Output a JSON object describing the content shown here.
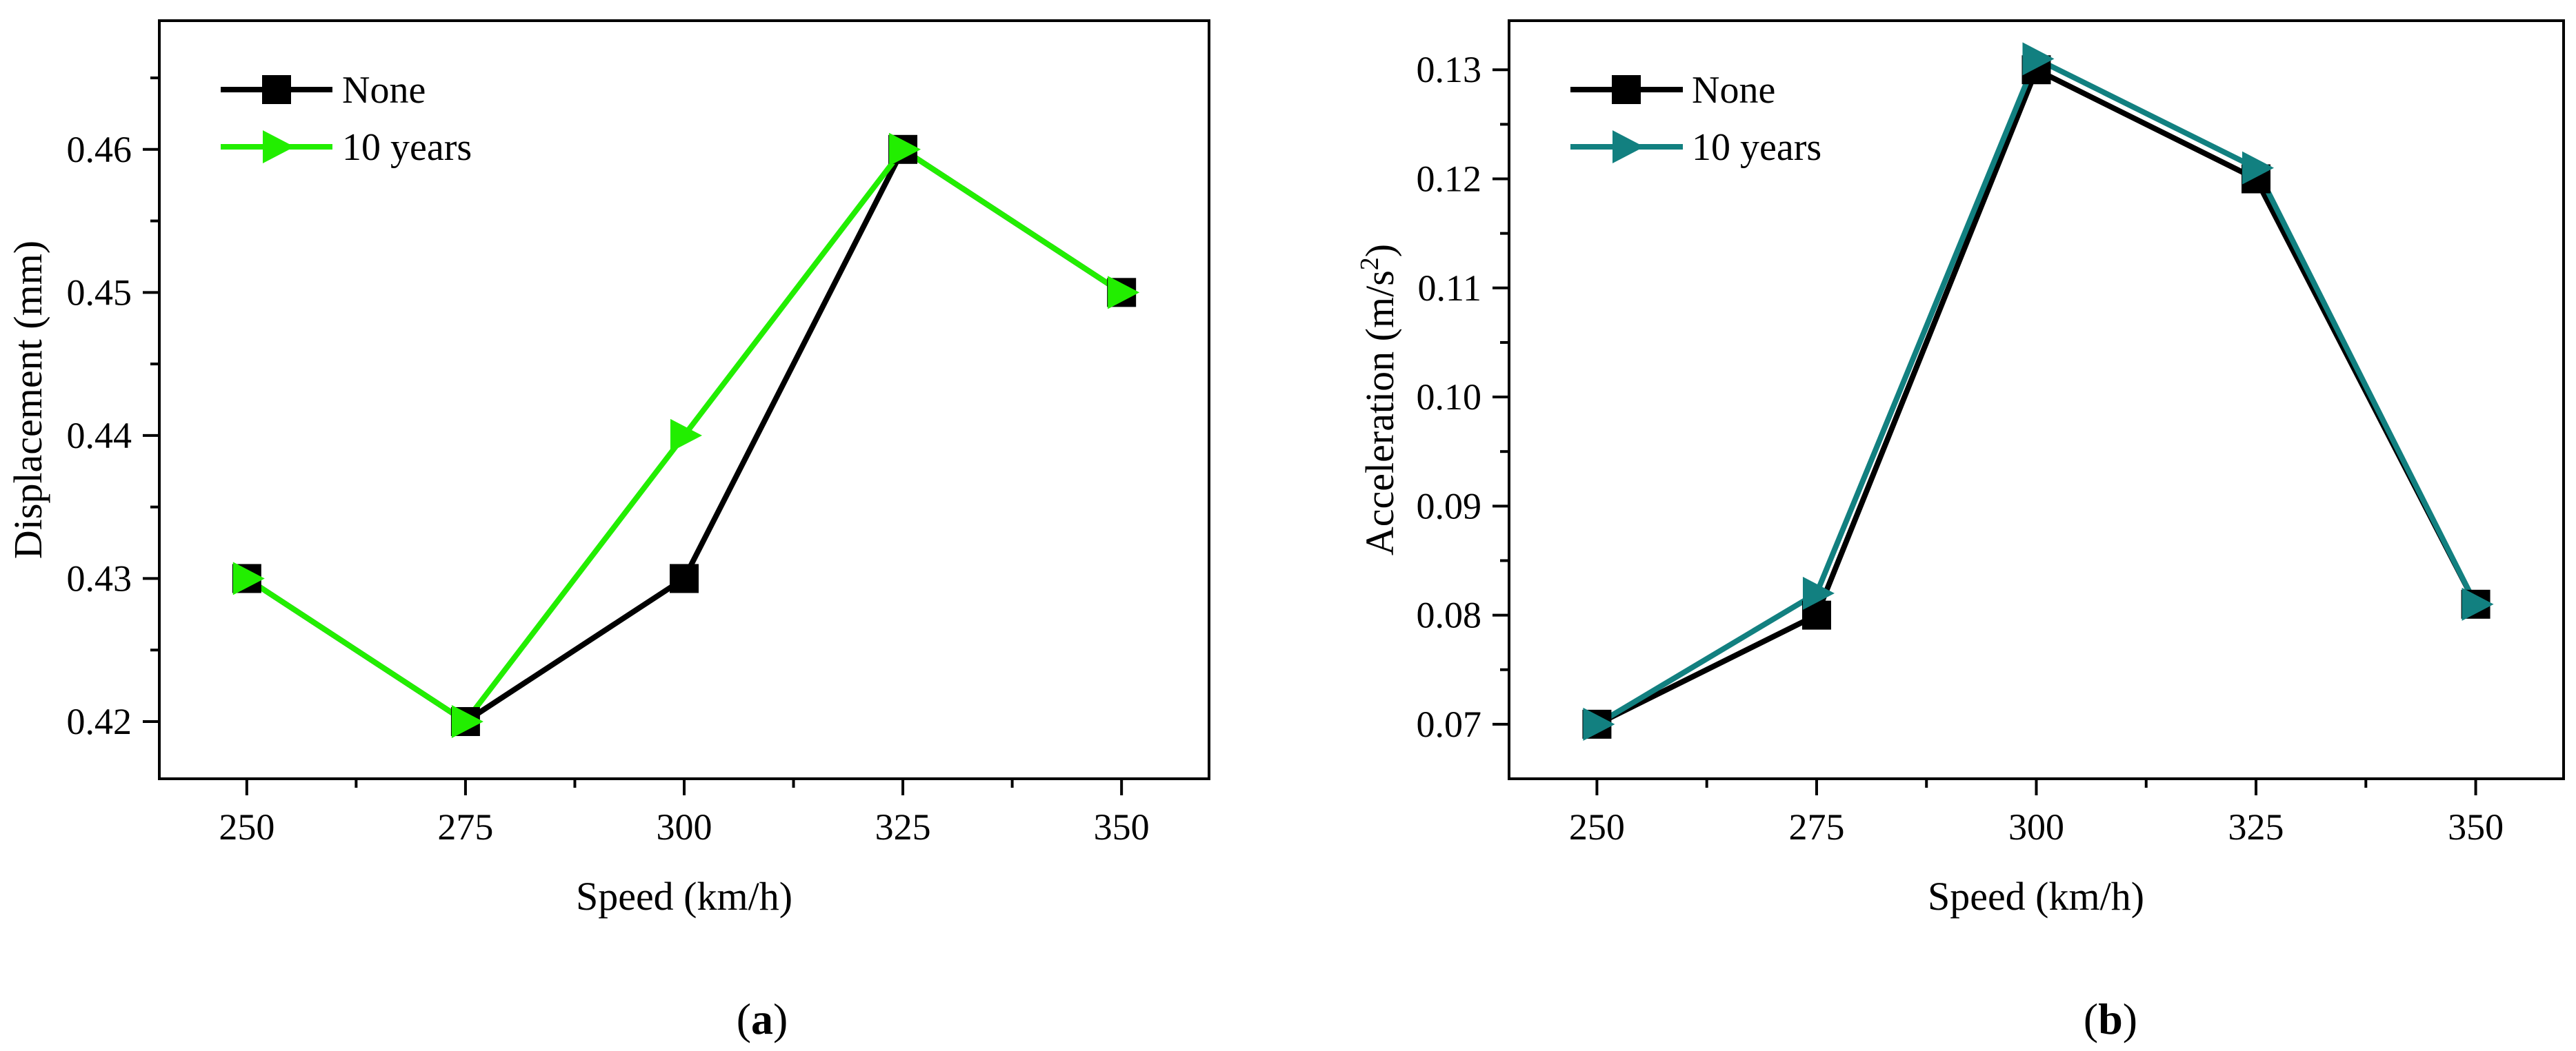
{
  "chart_data": [
    {
      "type": "line",
      "panel": "a",
      "panel_label_open": "(",
      "panel_label_letter": "a",
      "panel_label_close": ")",
      "x": [
        250,
        275,
        300,
        325,
        350
      ],
      "x_tick_labels": [
        "250",
        "275",
        "300",
        "325",
        "350"
      ],
      "xlim": [
        240,
        360
      ],
      "x_minor_ticks": [
        262.5,
        287.5,
        312.5,
        337.5
      ],
      "ylim": [
        0.416,
        0.469
      ],
      "y_ticks": [
        0.42,
        0.43,
        0.44,
        0.45,
        0.46
      ],
      "y_tick_labels": [
        "0.42",
        "0.43",
        "0.44",
        "0.45",
        "0.46"
      ],
      "y_minor_ticks": [
        0.425,
        0.435,
        0.445,
        0.455,
        0.465
      ],
      "xlabel": "Speed (km/h)",
      "ylabel": "Displacement (mm)",
      "ylabel_sup": "",
      "ylabel_tail": "",
      "legend_position": "top-left",
      "series": [
        {
          "name": "None",
          "color": "#000000",
          "marker": "square",
          "values": [
            0.43,
            0.42,
            0.43,
            0.46,
            0.45
          ]
        },
        {
          "name": "10 years",
          "color": "#22ee00",
          "marker": "triangle-right",
          "values": [
            0.43,
            0.42,
            0.44,
            0.46,
            0.45
          ]
        }
      ]
    },
    {
      "type": "line",
      "panel": "b",
      "panel_label_open": "(",
      "panel_label_letter": "b",
      "panel_label_close": ")",
      "x": [
        250,
        275,
        300,
        325,
        350
      ],
      "x_tick_labels": [
        "250",
        "275",
        "300",
        "325",
        "350"
      ],
      "xlim": [
        240,
        360
      ],
      "x_minor_ticks": [
        262.5,
        287.5,
        312.5,
        337.5
      ],
      "ylim": [
        0.065,
        0.1345
      ],
      "y_ticks": [
        0.07,
        0.08,
        0.09,
        0.1,
        0.11,
        0.12,
        0.13
      ],
      "y_tick_labels": [
        "0.07",
        "0.08",
        "0.09",
        "0.10",
        "0.11",
        "0.12",
        "0.13"
      ],
      "y_minor_ticks": [
        0.075,
        0.085,
        0.095,
        0.105,
        0.115,
        0.125
      ],
      "xlabel": "Speed (km/h)",
      "ylabel": "Acceleration (m/s",
      "ylabel_sup": "2",
      "ylabel_tail": ")",
      "legend_position": "top-left",
      "series": [
        {
          "name": "None",
          "color": "#000000",
          "marker": "square",
          "values": [
            0.07,
            0.08,
            0.13,
            0.12,
            0.081
          ]
        },
        {
          "name": "10 years",
          "color": "#128080",
          "marker": "triangle-right",
          "values": [
            0.07,
            0.082,
            0.131,
            0.121,
            0.081
          ]
        }
      ]
    }
  ]
}
